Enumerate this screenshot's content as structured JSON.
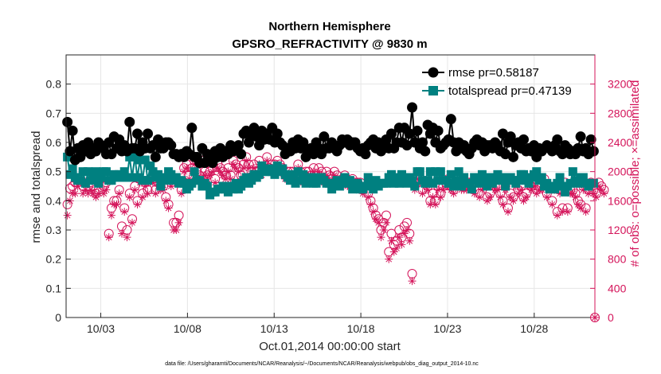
{
  "chart_data": {
    "type": "line",
    "title": "Northern Hemisphere",
    "subtitle": "GPSRO_REFRACTIVITY @ 9830 m",
    "xlabel": "Oct.01,2014 00:00:00 start",
    "ylabel_left": "rmse and totalspread",
    "ylabel_right": "# of obs: o=possible; ×=assimilated",
    "footnote": "data file: /Users/gharamti/Documents/NCAR/Reanalysis/~/Documents/NCAR/Reanalysis/webpub/obs_diag_output_2014-10.nc",
    "x_range": [
      0,
      30.5
    ],
    "ylim_left": [
      0,
      0.9
    ],
    "ylim_right": [
      0,
      3600
    ],
    "x_ticks": [
      {
        "value": 2,
        "label": "10/03"
      },
      {
        "value": 7,
        "label": "10/08"
      },
      {
        "value": 12,
        "label": "10/13"
      },
      {
        "value": 17,
        "label": "10/18"
      },
      {
        "value": 22,
        "label": "10/23"
      },
      {
        "value": 27,
        "label": "10/28"
      }
    ],
    "y_ticks_left": [
      "0",
      "0.1",
      "0.2",
      "0.3",
      "0.4",
      "0.5",
      "0.6",
      "0.7",
      "0.8"
    ],
    "y_ticks_right": [
      "0",
      "400",
      "800",
      "1200",
      "1600",
      "2000",
      "2400",
      "2800",
      "3200"
    ],
    "grid": true,
    "legend_position": "top-right",
    "colors": {
      "rmse": "#000000",
      "totalspread": "#008080",
      "obs": "#d4145a",
      "grid": "#e6e6e6",
      "axis": "#262626"
    },
    "series": [
      {
        "name": "rmse",
        "legend": "rmse pr=0.58187",
        "axis": "left",
        "values": [
          0.67,
          0.57,
          0.64,
          0.54,
          0.58,
          0.55,
          0.59,
          0.57,
          0.6,
          0.56,
          0.58,
          0.57,
          0.6,
          0.59,
          0.58,
          0.56,
          0.6,
          0.56,
          0.62,
          0.58,
          0.61,
          0.57,
          0.59,
          0.57,
          0.67,
          0.58,
          0.58,
          0.63,
          0.57,
          0.6,
          0.58,
          0.63,
          0.58,
          0.59,
          0.55,
          0.61,
          0.58,
          0.58,
          0.6,
          0.6,
          0.59,
          0.56,
          0.56,
          0.55,
          0.56,
          0.55,
          0.57,
          0.56,
          0.65,
          0.55,
          0.55,
          0.53,
          0.58,
          0.53,
          0.56,
          0.55,
          0.53,
          0.57,
          0.55,
          0.58,
          0.55,
          0.57,
          0.56,
          0.59,
          0.57,
          0.58,
          0.59,
          0.56,
          0.63,
          0.64,
          0.6,
          0.63,
          0.65,
          0.62,
          0.59,
          0.64,
          0.61,
          0.63,
          0.61,
          0.65,
          0.6,
          0.63,
          0.6,
          0.59,
          0.56,
          0.58,
          0.57,
          0.6,
          0.58,
          0.61,
          0.58,
          0.6,
          0.55,
          0.57,
          0.58,
          0.56,
          0.6,
          0.58,
          0.56,
          0.62,
          0.58,
          0.58,
          0.6,
          0.58,
          0.57,
          0.59,
          0.61,
          0.6,
          0.61,
          0.59,
          0.6,
          0.6,
          0.58,
          0.57,
          0.58,
          0.56,
          0.59,
          0.6,
          0.61,
          0.58,
          0.6,
          0.57,
          0.58,
          0.61,
          0.58,
          0.63,
          0.58,
          0.6,
          0.65,
          0.6,
          0.65,
          0.59,
          0.63,
          0.72,
          0.6,
          0.64,
          0.58,
          0.6,
          0.57,
          0.66,
          0.63,
          0.65,
          0.6,
          0.64,
          0.58,
          0.59,
          0.6,
          0.61,
          0.68,
          0.6,
          0.57,
          0.6,
          0.58,
          0.59,
          0.57,
          0.56,
          0.58,
          0.6,
          0.61,
          0.59,
          0.6,
          0.57,
          0.59,
          0.59,
          0.58,
          0.6,
          0.59,
          0.57,
          0.63,
          0.56,
          0.6,
          0.62,
          0.55,
          0.59,
          0.6,
          0.58,
          0.61,
          0.57,
          0.58,
          0.57,
          0.59,
          0.55,
          0.58,
          0.57,
          0.58,
          0.59,
          0.58,
          0.57,
          0.59,
          0.61,
          0.57,
          0.56,
          0.59,
          0.58,
          0.56,
          0.57,
          0.56,
          0.58,
          0.62,
          0.57,
          0.58,
          0.56,
          0.61,
          0.57
        ]
      },
      {
        "name": "totalspread",
        "legend": "totalspread pr=0.47139",
        "axis": "left",
        "values": [
          0.55,
          0.49,
          0.51,
          0.48,
          0.47,
          0.47,
          0.5,
          0.46,
          0.5,
          0.47,
          0.48,
          0.5,
          0.46,
          0.48,
          0.5,
          0.5,
          0.47,
          0.47,
          0.49,
          0.48,
          0.49,
          0.48,
          0.5,
          0.48,
          0.55,
          0.48,
          0.55,
          0.48,
          0.54,
          0.47,
          0.54,
          0.47,
          0.52,
          0.5,
          0.48,
          0.49,
          0.45,
          0.48,
          0.47,
          0.5,
          0.49,
          0.47,
          0.48,
          0.46,
          0.47,
          0.46,
          0.44,
          0.45,
          0.46,
          0.5,
          0.47,
          0.47,
          0.45,
          0.46,
          0.45,
          0.42,
          0.43,
          0.43,
          0.44,
          0.44,
          0.45,
          0.44,
          0.43,
          0.45,
          0.44,
          0.46,
          0.44,
          0.45,
          0.47,
          0.48,
          0.46,
          0.47,
          0.49,
          0.48,
          0.49,
          0.52,
          0.5,
          0.5,
          0.51,
          0.5,
          0.49,
          0.52,
          0.5,
          0.51,
          0.49,
          0.48,
          0.47,
          0.49,
          0.46,
          0.5,
          0.47,
          0.49,
          0.46,
          0.48,
          0.48,
          0.46,
          0.46,
          0.48,
          0.48,
          0.47,
          0.46,
          0.46,
          0.44,
          0.46,
          0.47,
          0.45,
          0.46,
          0.48,
          0.46,
          0.47,
          0.44,
          0.45,
          0.46,
          0.44,
          0.44,
          0.45,
          0.48,
          0.46,
          0.44,
          0.47,
          0.45,
          0.46,
          0.46,
          0.46,
          0.48,
          0.49,
          0.46,
          0.48,
          0.46,
          0.49,
          0.47,
          0.46,
          0.48,
          0.47,
          0.45,
          0.5,
          0.5,
          0.47,
          0.46,
          0.47,
          0.5,
          0.46,
          0.5,
          0.47,
          0.5,
          0.47,
          0.47,
          0.46,
          0.49,
          0.45,
          0.47,
          0.5,
          0.45,
          0.48,
          0.46,
          0.46,
          0.44,
          0.48,
          0.47,
          0.46,
          0.49,
          0.47,
          0.45,
          0.48,
          0.46,
          0.47,
          0.49,
          0.48,
          0.47,
          0.45,
          0.48,
          0.48,
          0.47,
          0.46,
          0.47,
          0.49,
          0.49,
          0.47,
          0.46,
          0.48,
          0.49,
          0.5,
          0.47,
          0.48,
          0.45,
          0.46,
          0.44,
          0.45,
          0.44,
          0.46,
          0.48,
          0.45,
          0.43,
          0.45,
          0.46,
          0.5,
          0.47,
          0.46,
          0.48,
          0.48,
          0.46,
          0.45,
          0.46,
          0.46
        ]
      },
      {
        "name": "obs_possible",
        "legend": "o=possible",
        "axis": "right",
        "values": [
          1550,
          1770,
          1800,
          1850,
          1850,
          1900,
          1800,
          1850,
          1800,
          1850,
          1800,
          1700,
          1750,
          1900,
          1800,
          1850,
          1150,
          1500,
          1600,
          1600,
          1750,
          1250,
          1500,
          1200,
          1700,
          1350,
          1800,
          1600,
          1900,
          1700,
          1850,
          1750,
          1900,
          1900,
          1750,
          1850,
          1800,
          1800,
          1650,
          1550,
          1850,
          1300,
          1300,
          1400,
          1750,
          2050,
          2100,
          1950,
          2050,
          2150,
          2000,
          1950,
          2150,
          2000,
          1950,
          2000,
          2050,
          1900,
          2100,
          2050,
          2000,
          1950,
          2050,
          1950,
          2150,
          2100,
          2050,
          1950,
          2100,
          2200,
          2100,
          2000,
          2100,
          2000,
          2150,
          2000,
          2050,
          2200,
          2050,
          2100,
          2100,
          2150,
          2100,
          2050,
          1950,
          2000,
          2000,
          2000,
          1950,
          2100,
          2000,
          1900,
          2000,
          2000,
          1950,
          2050,
          1900,
          2050,
          2000,
          1900,
          2000,
          1950,
          1900,
          2000,
          1950,
          1850,
          1900,
          1950,
          1850,
          1850,
          1900,
          1850,
          1850,
          1850,
          1750,
          1800,
          1700,
          1600,
          1500,
          1400,
          1350,
          1200,
          1300,
          1400,
          900,
          1150,
          1000,
          1050,
          1200,
          1100,
          1250,
          1300,
          1150,
          600,
          1800,
          1950,
          1900,
          1750,
          1850,
          1800,
          1600,
          1700,
          1600,
          1800,
          1700,
          1800,
          1850,
          1900,
          1800,
          1750,
          1850,
          1850,
          1800,
          1800,
          1800,
          1850,
          1850,
          1750,
          1900,
          1700,
          1800,
          1850,
          1650,
          1700,
          1850,
          1800,
          1800,
          1700,
          1600,
          1800,
          1500,
          1700,
          1650,
          1850,
          1750,
          1800,
          1650,
          1700,
          1850,
          1800,
          1850,
          1750,
          1800,
          1800,
          1900,
          1700,
          1800,
          1600,
          1800,
          1450,
          1750,
          1500,
          1850,
          1500,
          1750,
          1750,
          1700,
          1600,
          1550,
          1800,
          1500,
          1750,
          1850,
          1750,
          1700,
          1850,
          1800,
          1750
        ]
      },
      {
        "name": "obs_assimilated",
        "legend": "×=assimilated",
        "axis": "right",
        "values": [
          1400,
          1600,
          1700,
          1700,
          1800,
          1850,
          1700,
          1750,
          1700,
          1750,
          1700,
          1650,
          1700,
          1800,
          1700,
          1750,
          1100,
          1400,
          1550,
          1550,
          1700,
          1150,
          1450,
          1100,
          1650,
          1300,
          1750,
          1550,
          1850,
          1650,
          1800,
          1700,
          1850,
          1850,
          1700,
          1800,
          1750,
          1750,
          1600,
          1500,
          1800,
          1200,
          1200,
          1300,
          1700,
          2000,
          2050,
          1900,
          2000,
          2100,
          1950,
          1900,
          2100,
          1950,
          1900,
          1950,
          2000,
          1850,
          2050,
          2000,
          1950,
          1900,
          2000,
          1900,
          2100,
          2050,
          2000,
          1900,
          2050,
          2150,
          2050,
          1950,
          2050,
          1950,
          2100,
          1950,
          2000,
          2150,
          2000,
          2050,
          2050,
          2100,
          2050,
          2000,
          1900,
          1950,
          1950,
          1950,
          1900,
          2050,
          1950,
          1850,
          1950,
          1950,
          1900,
          2000,
          1850,
          2000,
          1950,
          1850,
          1950,
          1900,
          1850,
          1950,
          1900,
          1800,
          1850,
          1900,
          1800,
          1800,
          1850,
          1800,
          1800,
          1800,
          1700,
          1750,
          1650,
          1550,
          1450,
          1350,
          1300,
          1100,
          1200,
          1300,
          800,
          1050,
          900,
          950,
          1100,
          1000,
          1150,
          1200,
          1050,
          500,
          1750,
          1900,
          1850,
          1700,
          1800,
          1750,
          1550,
          1650,
          1550,
          1750,
          1650,
          1750,
          1800,
          1850,
          1750,
          1700,
          1800,
          1800,
          1750,
          1750,
          1750,
          1800,
          1800,
          1700,
          1850,
          1650,
          1750,
          1800,
          1600,
          1650,
          1800,
          1750,
          1750,
          1650,
          1550,
          1750,
          1450,
          1650,
          1600,
          1800,
          1700,
          1750,
          1600,
          1650,
          1800,
          1750,
          1800,
          1700,
          1750,
          1750,
          1850,
          1650,
          1750,
          1550,
          1750,
          1400,
          1700,
          1450,
          1800,
          1450,
          1700,
          1700,
          1650,
          1550,
          1500,
          1750,
          1450,
          1700,
          1800,
          1700,
          1650,
          1800,
          1750,
          1700
        ]
      }
    ]
  }
}
